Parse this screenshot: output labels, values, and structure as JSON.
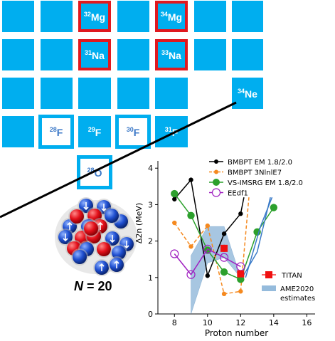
{
  "chart_grid": {
    "nuclides": [
      {
        "mass": "32",
        "symbol": "Mg"
      },
      {
        "mass": "34",
        "symbol": "Mg"
      },
      {
        "mass": "31",
        "symbol": "Na"
      },
      {
        "mass": "33",
        "symbol": "Na"
      },
      {
        "mass": "34",
        "symbol": "Ne"
      },
      {
        "mass": "28",
        "symbol": "F"
      },
      {
        "mass": "29",
        "symbol": "F"
      },
      {
        "mass": "30",
        "symbol": "F"
      },
      {
        "mass": "31",
        "symbol": "F"
      },
      {
        "mass": "28",
        "symbol": "O"
      }
    ]
  },
  "nucleus_label": {
    "n": "N",
    "eq": "= 20"
  },
  "chart_data": {
    "type": "line",
    "xlabel": "Proton number",
    "ylabel": "Δ2n (MeV)",
    "xlim": [
      7,
      16.5
    ],
    "ylim": [
      0,
      4.2
    ],
    "xticks": [
      "8",
      "10",
      "12",
      "14",
      "16"
    ],
    "yticks": [
      "0",
      "1",
      "2",
      "3",
      "4"
    ],
    "legend_position": "top-right",
    "series": [
      {
        "name": "BMBPT EM 1.8/2.0",
        "color": "#000000",
        "marker": "dot",
        "dash": false,
        "points": [
          [
            8,
            3.15
          ],
          [
            9,
            3.68
          ],
          [
            10,
            1.05
          ],
          [
            11,
            2.2
          ],
          [
            12,
            2.75
          ],
          [
            12.2,
            3.2
          ]
        ]
      },
      {
        "name": "BMBPT 3NlnlE7",
        "color": "#f5891f",
        "marker": "dot",
        "dash": true,
        "points": [
          [
            8,
            2.5
          ],
          [
            9,
            1.85
          ],
          [
            10,
            2.42
          ],
          [
            11,
            0.55
          ],
          [
            12,
            0.62
          ],
          [
            12.5,
            3.2
          ]
        ]
      },
      {
        "name": "VS-IMSRG EM 1.8/2.0",
        "color": "#2ca02c",
        "marker": "big-dot",
        "dash": false,
        "points": [
          [
            8,
            3.3
          ],
          [
            9,
            2.7
          ],
          [
            10,
            1.75
          ],
          [
            11,
            1.15
          ],
          [
            12,
            0.95
          ],
          [
            13,
            2.25
          ],
          [
            14,
            2.92
          ]
        ]
      },
      {
        "name": "EEdf1",
        "color": "#a020c0",
        "marker": "open-circle",
        "dash": false,
        "points": [
          [
            8,
            1.65
          ],
          [
            9,
            1.08
          ],
          [
            10,
            1.78
          ],
          [
            11,
            1.55
          ],
          [
            12,
            1.3
          ]
        ]
      },
      {
        "name": "",
        "color": "#3b7bc8",
        "marker": "none",
        "dash": false,
        "points": [
          [
            12.1,
            1.0
          ],
          [
            13,
            1.7
          ],
          [
            13.8,
            3.2
          ]
        ]
      },
      {
        "name": "",
        "color": "#3b7bc8",
        "marker": "none",
        "dash": false,
        "points": [
          [
            12.3,
            1.0
          ],
          [
            13.2,
            2.4
          ],
          [
            13.9,
            3.2
          ]
        ]
      }
    ],
    "titan": {
      "name": "TITAN",
      "color": "#f01010",
      "points": [
        [
          11,
          1.8
        ],
        [
          12,
          1.1
        ]
      ],
      "yerr": [
        0.1,
        0.08
      ]
    },
    "ame2020": {
      "name": "AME2020 estimates",
      "color": "#8ab4d8",
      "upper": [
        [
          9,
          1.6
        ],
        [
          10,
          2.4
        ],
        [
          11,
          2.4
        ],
        [
          12,
          1.0
        ]
      ],
      "lower": [
        [
          9,
          0.0
        ],
        [
          10,
          1.4
        ],
        [
          11,
          1.55
        ],
        [
          12,
          1.0
        ]
      ]
    }
  }
}
